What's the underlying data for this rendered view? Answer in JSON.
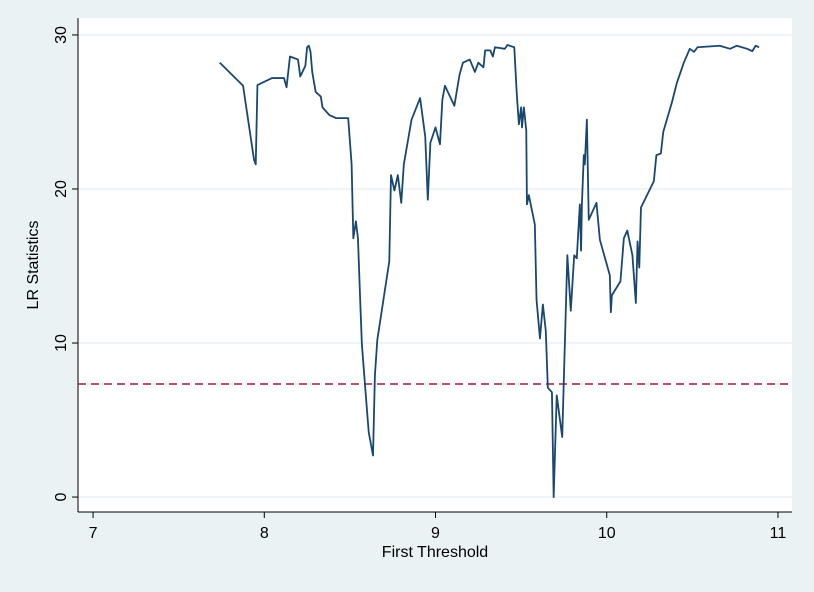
{
  "chart_data": {
    "type": "line",
    "xlabel": "First Threshold",
    "ylabel": "LR Statistics",
    "x": [
      7.74,
      7.876,
      7.94,
      7.95,
      7.96,
      8.045,
      8.115,
      8.13,
      8.15,
      8.197,
      8.21,
      8.24,
      8.25,
      8.26,
      8.27,
      8.28,
      8.3,
      8.33,
      8.34,
      8.38,
      8.42,
      8.49,
      8.51,
      8.52,
      8.535,
      8.547,
      8.56,
      8.57,
      8.6,
      8.61,
      8.635,
      8.646,
      8.66,
      8.73,
      8.74,
      8.76,
      8.78,
      8.8,
      8.815,
      8.86,
      8.91,
      8.94,
      8.955,
      8.97,
      9.0,
      9.026,
      9.04,
      9.055,
      9.11,
      9.14,
      9.16,
      9.2,
      9.23,
      9.25,
      9.28,
      9.29,
      9.32,
      9.335,
      9.347,
      9.405,
      9.42,
      9.46,
      9.475,
      9.487,
      9.5,
      9.505,
      9.516,
      9.53,
      9.534,
      9.545,
      9.58,
      9.59,
      9.61,
      9.627,
      9.644,
      9.656,
      9.68,
      9.69,
      9.708,
      9.74,
      9.77,
      9.79,
      9.81,
      9.825,
      9.843,
      9.85,
      9.855,
      9.866,
      9.872,
      9.884,
      9.895,
      9.94,
      9.96,
      10.018,
      10.024,
      10.03,
      10.08,
      10.1,
      10.12,
      10.15,
      10.17,
      10.18,
      10.19,
      10.2,
      10.275,
      10.29,
      10.316,
      10.33,
      10.38,
      10.41,
      10.45,
      10.485,
      10.51,
      10.53,
      10.66,
      10.72,
      10.76,
      10.82,
      10.85,
      10.87,
      10.89
    ],
    "series": [
      {
        "color": "#1a476f",
        "values": [
          28.2,
          26.7,
          21.9,
          21.6,
          26.75,
          27.2,
          27.2,
          26.6,
          28.6,
          28.4,
          27.3,
          28.0,
          29.2,
          29.3,
          28.9,
          27.6,
          26.3,
          26.0,
          25.3,
          24.8,
          24.6,
          24.6,
          21.6,
          16.8,
          17.9,
          16.8,
          12.8,
          9.9,
          5.6,
          4.2,
          2.7,
          7.9,
          10.2,
          15.3,
          20.9,
          19.9,
          20.9,
          19.1,
          21.6,
          24.5,
          25.9,
          23.4,
          19.3,
          23.0,
          24.0,
          22.9,
          25.8,
          26.7,
          25.4,
          27.4,
          28.2,
          28.4,
          27.6,
          28.2,
          27.9,
          29.0,
          29.0,
          28.6,
          29.2,
          29.1,
          29.35,
          29.2,
          26.1,
          24.2,
          25.3,
          24.0,
          25.3,
          23.8,
          19.0,
          19.6,
          17.7,
          12.8,
          10.3,
          12.5,
          10.8,
          7.1,
          6.8,
          0.0,
          6.6,
          3.9,
          15.7,
          12.1,
          15.7,
          15.5,
          19.0,
          16.0,
          19.0,
          22.2,
          21.6,
          24.5,
          18.0,
          19.1,
          16.7,
          14.4,
          12.0,
          13.1,
          14.0,
          16.8,
          17.3,
          15.7,
          12.6,
          16.6,
          14.9,
          18.8,
          20.5,
          22.2,
          22.3,
          23.7,
          25.6,
          26.9,
          28.2,
          29.1,
          28.9,
          29.2,
          29.3,
          29.1,
          29.3,
          29.1,
          28.95,
          29.3,
          29.2
        ]
      }
    ],
    "reference_line": 7.34,
    "reference_color": "#9e1b38",
    "xlim": [
      6.912,
      11.082
    ],
    "xticks": [
      7,
      8,
      9,
      10,
      11
    ],
    "ylim": [
      -0.97,
      31.1
    ],
    "yticks": [
      0,
      10,
      20,
      30
    ],
    "grid": true
  }
}
